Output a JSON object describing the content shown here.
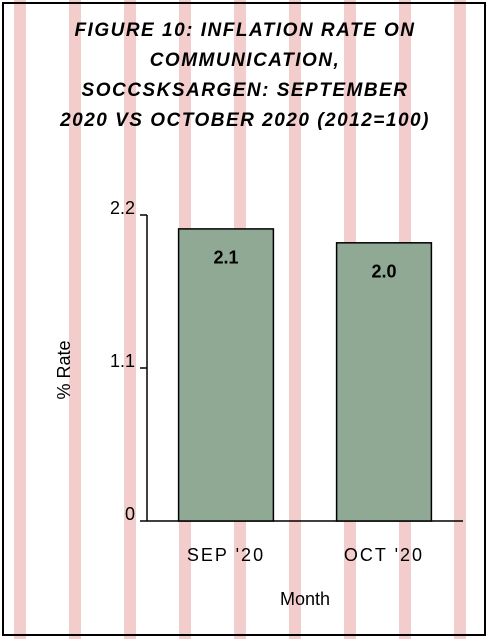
{
  "chart_data": {
    "type": "bar",
    "title": "FIGURE 10: INFLATION RATE ON COMMUNICATION, SOCCSKSARGEN: SEPTEMBER 2020 VS OCTOBER 2020 (2012=100)",
    "categories": [
      "SEP '20",
      "OCT '20"
    ],
    "values": [
      2.1,
      2.0
    ],
    "value_labels": [
      "2.1",
      "2.0"
    ],
    "color": "#8fa994",
    "x_label": "Month",
    "y_label": "% Rate",
    "ylim": [
      0,
      2.2
    ],
    "yticks": [
      0,
      1.1,
      2.2
    ],
    "grid": false
  }
}
